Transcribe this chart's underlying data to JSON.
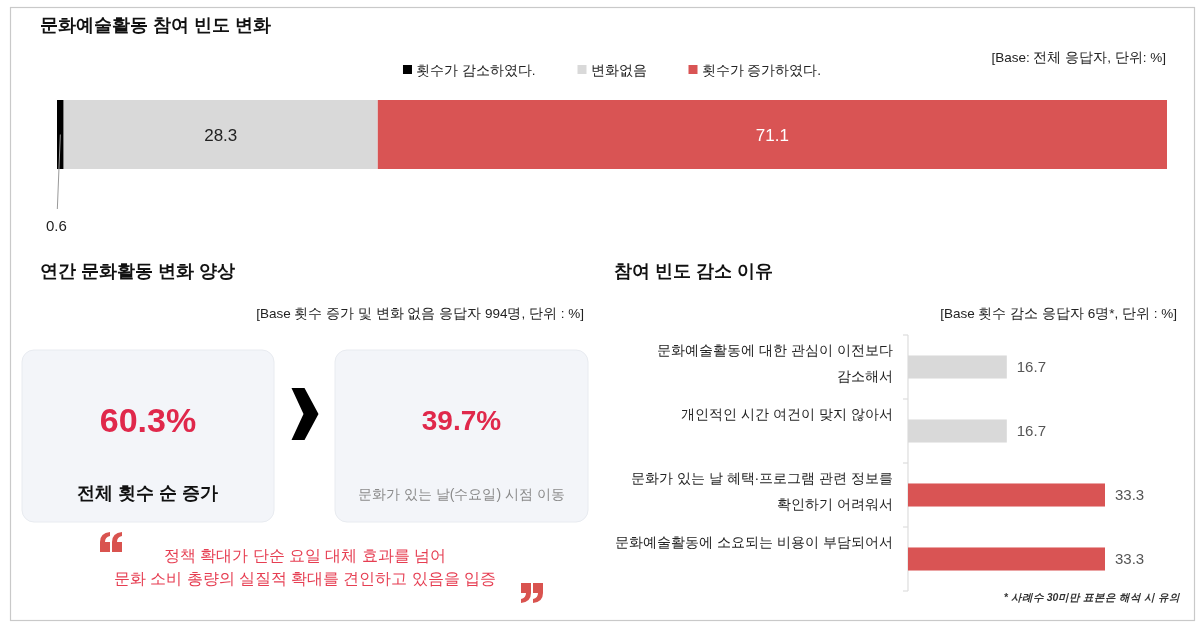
{
  "chart_data": [
    {
      "type": "bar",
      "orientation": "horizontal",
      "stacked": true,
      "title": "문화예술활동 참여 빈도 변화",
      "subtitle": "[Base: 전체 응답자, 단위: %]",
      "categories": [
        null
      ],
      "series": [
        {
          "name": "횟수가 감소하였다.",
          "color": "#000000",
          "values": [
            0.6
          ]
        },
        {
          "name": "변화없음",
          "color": "#d9d9d9",
          "values": [
            28.3
          ]
        },
        {
          "name": "횟수가 증가하였다.",
          "color": "#d95454",
          "values": [
            71.1
          ]
        }
      ],
      "xlim": [
        0,
        100
      ],
      "data_labels": true,
      "legend": "top"
    },
    {
      "type": "other",
      "title": "연간 문화활동 변화 양상",
      "subtitle": "[Base 횟수 증가 및 변화 없음 응답자 994명, 단위 : %]",
      "annotations": [
        "60.3%",
        "전체 횟수 순 증가",
        "39.7%",
        "문화가 있는 날(수요일) 시점 이동",
        "정책 확대가 단순 요일 대체 효과를 넘어\n문화 소비 총량의 실질적 확대를 견인하고 있음을 입증"
      ]
    },
    {
      "type": "bar",
      "orientation": "horizontal",
      "title": "참여 빈도 감소 이유",
      "subtitle": "[Base 횟수 감소 응답자 6명*, 단위 : %]",
      "categories": [
        "문화예술활동에 대한 관심이 이전보다 감소해서",
        "개인적인 시간 여건이 맞지 않아서",
        "문화가 있는 날 혜택·프로그램 관련 정보를 확인하기 어려워서",
        "문화예술활동에 소요되는 비용이 부담되어서"
      ],
      "values": [
        16.7,
        16.7,
        33.3,
        33.3
      ],
      "colors": [
        "#d9d9d9",
        "#d9d9d9",
        "#d95454",
        "#d95454"
      ],
      "data_labels": true,
      "tick_labels": "y",
      "annotations": [
        "* 사례수 30미만 표본은 해석 시 유의"
      ]
    }
  ]
}
